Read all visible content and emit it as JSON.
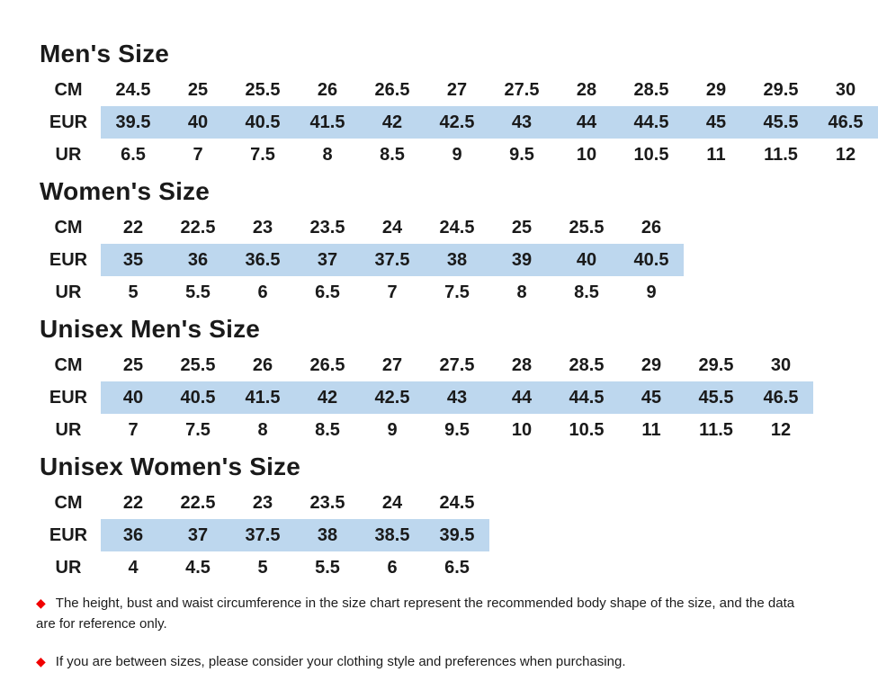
{
  "page": {
    "highlight_color": "#BDD7EE",
    "diamond_color": "#f10000",
    "diamond_icon": "◆"
  },
  "sections": [
    {
      "title": "Men's Size",
      "rows": [
        {
          "label": "CM",
          "highlight": false,
          "values": [
            "24.5",
            "25",
            "25.5",
            "26",
            "26.5",
            "27",
            "27.5",
            "28",
            "28.5",
            "29",
            "29.5",
            "30"
          ]
        },
        {
          "label": "EUR",
          "highlight": true,
          "values": [
            "39.5",
            "40",
            "40.5",
            "41.5",
            "42",
            "42.5",
            "43",
            "44",
            "44.5",
            "45",
            "45.5",
            "46.5"
          ]
        },
        {
          "label": "UR",
          "highlight": false,
          "values": [
            "6.5",
            "7",
            "7.5",
            "8",
            "8.5",
            "9",
            "9.5",
            "10",
            "10.5",
            "11",
            "11.5",
            "12"
          ]
        }
      ]
    },
    {
      "title": "Women's Size",
      "rows": [
        {
          "label": "CM",
          "highlight": false,
          "values": [
            "22",
            "22.5",
            "23",
            "23.5",
            "24",
            "24.5",
            "25",
            "25.5",
            "26"
          ]
        },
        {
          "label": "EUR",
          "highlight": true,
          "values": [
            "35",
            "36",
            "36.5",
            "37",
            "37.5",
            "38",
            "39",
            "40",
            "40.5"
          ]
        },
        {
          "label": "UR",
          "highlight": false,
          "values": [
            "5",
            "5.5",
            "6",
            "6.5",
            "7",
            "7.5",
            "8",
            "8.5",
            "9"
          ]
        }
      ]
    },
    {
      "title": "Unisex Men's Size",
      "rows": [
        {
          "label": "CM",
          "highlight": false,
          "values": [
            "25",
            "25.5",
            "26",
            "26.5",
            "27",
            "27.5",
            "28",
            "28.5",
            "29",
            "29.5",
            "30"
          ]
        },
        {
          "label": "EUR",
          "highlight": true,
          "values": [
            "40",
            "40.5",
            "41.5",
            "42",
            "42.5",
            "43",
            "44",
            "44.5",
            "45",
            "45.5",
            "46.5"
          ]
        },
        {
          "label": "UR",
          "highlight": false,
          "values": [
            "7",
            "7.5",
            "8",
            "8.5",
            "9",
            "9.5",
            "10",
            "10.5",
            "11",
            "11.5",
            "12"
          ]
        }
      ]
    },
    {
      "title": "Unisex Women's Size",
      "rows": [
        {
          "label": "CM",
          "highlight": false,
          "values": [
            "22",
            "22.5",
            "23",
            "23.5",
            "24",
            "24.5"
          ]
        },
        {
          "label": "EUR",
          "highlight": true,
          "values": [
            "36",
            "37",
            "37.5",
            "38",
            "38.5",
            "39.5"
          ]
        },
        {
          "label": "UR",
          "highlight": false,
          "values": [
            "4",
            "4.5",
            "5",
            "5.5",
            "6",
            "6.5"
          ]
        }
      ]
    }
  ],
  "notes": [
    "The height, bust and waist circumference in the size chart represent the recommended body shape of the size, and the data are for reference only.",
    "If you are between sizes, please consider your clothing style and preferences when purchasing."
  ]
}
